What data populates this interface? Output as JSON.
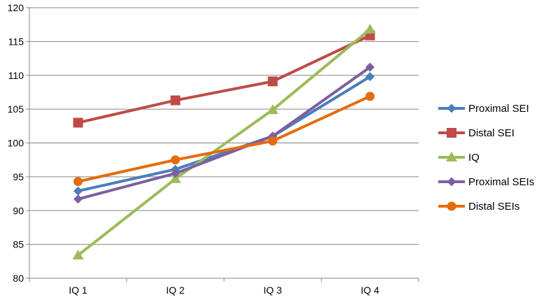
{
  "chart_data": {
    "type": "line",
    "title": "",
    "xlabel": "",
    "ylabel": "",
    "categories": [
      "IQ 1",
      "IQ 2",
      "IQ 3",
      "IQ 4"
    ],
    "ylim": [
      80,
      120
    ],
    "yticks": [
      80,
      85,
      90,
      95,
      100,
      105,
      110,
      115,
      120
    ],
    "grid": "horizontal",
    "legend_position": "right",
    "series": [
      {
        "name": "Proximal SEI",
        "color": "#4a7ebb",
        "marker": "diamond",
        "values": [
          92.9,
          96.1,
          101.0,
          109.8
        ]
      },
      {
        "name": "Distal SEI",
        "color": "#be4b48",
        "marker": "square",
        "values": [
          103.0,
          106.3,
          109.1,
          115.9
        ]
      },
      {
        "name": "IQ",
        "color": "#9bbb59",
        "marker": "triangle",
        "values": [
          83.4,
          94.7,
          104.9,
          116.8
        ]
      },
      {
        "name": "Proximal SEIs",
        "color": "#7d5fa0",
        "marker": "diamond",
        "values": [
          91.7,
          95.5,
          101.0,
          111.2
        ]
      },
      {
        "name": "Distal SEIs",
        "color": "#e46c0a",
        "marker": "circle",
        "values": [
          94.3,
          97.5,
          100.3,
          106.9
        ]
      }
    ]
  }
}
